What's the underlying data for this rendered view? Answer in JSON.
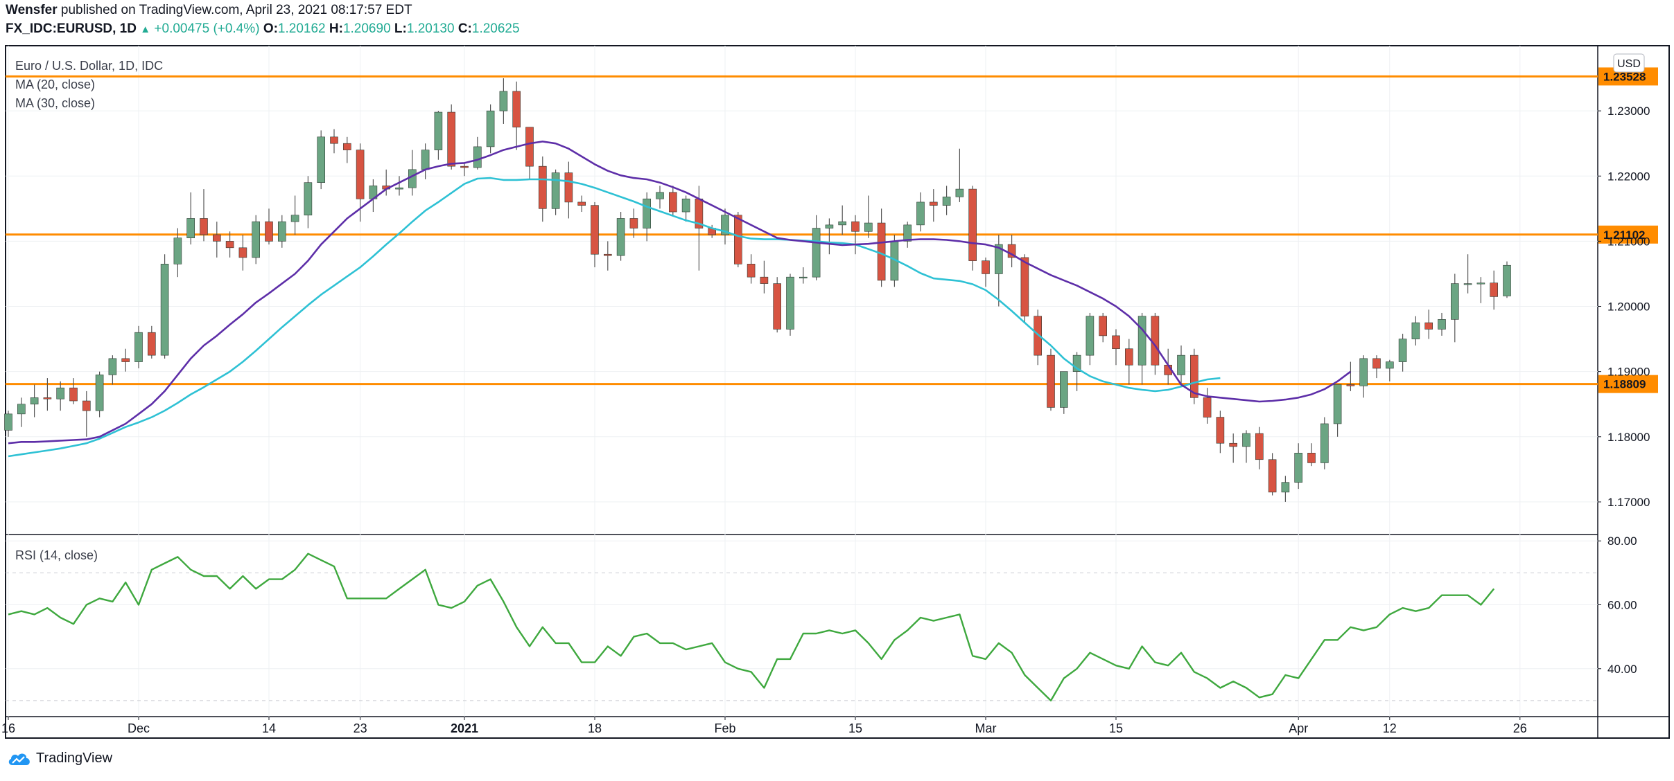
{
  "header": {
    "author": "Wensfer",
    "published_text": "published on TradingView.com, April 23, 2021 08:17:57 EDT",
    "symbol": "FX_IDC:EURUSD, 1D",
    "change": "+0.00475 (+0.4%)",
    "o_label": "O:",
    "o_value": "1.20162",
    "h_label": "H:",
    "h_value": "1.20690",
    "l_label": "L:",
    "l_value": "1.20130",
    "c_label": "C:",
    "c_value": "1.20625"
  },
  "legend": {
    "title": "Euro / U.S. Dollar, 1D, IDC",
    "ma20": "MA (20, close)",
    "ma30": "MA (30, close)",
    "rsi": "RSI (14, close)",
    "currency_button": "USD"
  },
  "footer": {
    "brand": "TradingView"
  },
  "colors": {
    "up": "#6ba583",
    "down": "#d75442",
    "wick": "#555555",
    "ma20": "#5d2ea8",
    "ma30": "#2ec1d4",
    "hline": "#ff8c00",
    "rsi": "#3ea83e",
    "grid": "#eef0f3",
    "axis": "#131722"
  },
  "chart_data": {
    "type": "candlestick",
    "title": "Euro / U.S. Dollar, 1D, IDC",
    "price_axis": {
      "min": 1.165,
      "max": 1.24,
      "ticks": [
        1.17,
        1.18,
        1.19,
        1.2,
        1.21,
        1.22,
        1.23
      ],
      "tick_labels": [
        "1.17000",
        "1.18000",
        "1.19000",
        "1.20000",
        "1.21000",
        "1.22000",
        "1.23000"
      ]
    },
    "x_ticks": [
      {
        "i": 0,
        "label": "16"
      },
      {
        "i": 10,
        "label": "Dec"
      },
      {
        "i": 20,
        "label": "14"
      },
      {
        "i": 27,
        "label": "23"
      },
      {
        "i": 35,
        "label": "2021"
      },
      {
        "i": 45,
        "label": "18"
      },
      {
        "i": 55,
        "label": "Feb"
      },
      {
        "i": 65,
        "label": "15"
      },
      {
        "i": 75,
        "label": "Mar"
      },
      {
        "i": 85,
        "label": "15"
      },
      {
        "i": 99,
        "label": "Apr"
      },
      {
        "i": 106,
        "label": "12"
      },
      {
        "i": 116,
        "label": "26"
      }
    ],
    "horizontal_lines": [
      1.23528,
      1.21102,
      1.18809
    ],
    "horizontal_line_labels": [
      "1.23528",
      "1.21102",
      "1.18809"
    ],
    "candles": [
      [
        1.181,
        1.184,
        1.18,
        1.1835
      ],
      [
        1.1835,
        1.186,
        1.1815,
        1.185
      ],
      [
        1.185,
        1.188,
        1.183,
        1.186
      ],
      [
        1.186,
        1.189,
        1.184,
        1.1858
      ],
      [
        1.1858,
        1.1885,
        1.184,
        1.1875
      ],
      [
        1.1875,
        1.189,
        1.185,
        1.1855
      ],
      [
        1.1855,
        1.187,
        1.18,
        1.184
      ],
      [
        1.184,
        1.19,
        1.183,
        1.1895
      ],
      [
        1.1895,
        1.1925,
        1.188,
        1.192
      ],
      [
        1.192,
        1.1935,
        1.19,
        1.1915
      ],
      [
        1.1915,
        1.197,
        1.1905,
        1.196
      ],
      [
        1.196,
        1.197,
        1.192,
        1.1925
      ],
      [
        1.1925,
        1.208,
        1.192,
        1.2065
      ],
      [
        1.2065,
        1.212,
        1.2045,
        1.2105
      ],
      [
        1.2105,
        1.2175,
        1.2095,
        1.2135
      ],
      [
        1.2135,
        1.218,
        1.21,
        1.211
      ],
      [
        1.211,
        1.213,
        1.2075,
        1.21
      ],
      [
        1.21,
        1.2115,
        1.2075,
        1.209
      ],
      [
        1.209,
        1.211,
        1.2055,
        1.2075
      ],
      [
        1.2075,
        1.214,
        1.2065,
        1.213
      ],
      [
        1.213,
        1.215,
        1.2095,
        1.21
      ],
      [
        1.21,
        1.214,
        1.209,
        1.213
      ],
      [
        1.213,
        1.217,
        1.211,
        1.214
      ],
      [
        1.214,
        1.22,
        1.212,
        1.219
      ],
      [
        1.219,
        1.227,
        1.218,
        1.226
      ],
      [
        1.226,
        1.2272,
        1.2235,
        1.225
      ],
      [
        1.225,
        1.226,
        1.222,
        1.224
      ],
      [
        1.224,
        1.225,
        1.213,
        1.2165
      ],
      [
        1.2165,
        1.2195,
        1.2145,
        1.2185
      ],
      [
        1.2185,
        1.221,
        1.217,
        1.218
      ],
      [
        1.218,
        1.22,
        1.217,
        1.2182
      ],
      [
        1.2182,
        1.224,
        1.217,
        1.221
      ],
      [
        1.221,
        1.225,
        1.2195,
        1.224
      ],
      [
        1.224,
        1.23,
        1.2225,
        1.2298
      ],
      [
        1.2298,
        1.231,
        1.221,
        1.2215
      ],
      [
        1.2215,
        1.222,
        1.22,
        1.2213
      ],
      [
        1.2213,
        1.226,
        1.221,
        1.2245
      ],
      [
        1.2245,
        1.231,
        1.2235,
        1.23
      ],
      [
        1.23,
        1.235,
        1.228,
        1.233
      ],
      [
        1.233,
        1.2345,
        1.224,
        1.2275
      ],
      [
        1.2275,
        1.2275,
        1.2195,
        1.2215
      ],
      [
        1.2215,
        1.223,
        1.213,
        1.215
      ],
      [
        1.215,
        1.221,
        1.214,
        1.2205
      ],
      [
        1.2205,
        1.2222,
        1.2135,
        1.216
      ],
      [
        1.216,
        1.217,
        1.2145,
        1.2155
      ],
      [
        1.2155,
        1.216,
        1.206,
        1.208
      ],
      [
        1.208,
        1.21,
        1.2055,
        1.2078
      ],
      [
        1.2078,
        1.2145,
        1.207,
        1.2135
      ],
      [
        1.2135,
        1.215,
        1.2105,
        1.212
      ],
      [
        1.212,
        1.2175,
        1.21,
        1.2165
      ],
      [
        1.2165,
        1.2185,
        1.215,
        1.2175
      ],
      [
        1.2175,
        1.2185,
        1.214,
        1.2145
      ],
      [
        1.2145,
        1.217,
        1.213,
        1.2165
      ],
      [
        1.2165,
        1.2185,
        1.2055,
        1.212
      ],
      [
        1.212,
        1.2125,
        1.2105,
        1.211
      ],
      [
        1.211,
        1.215,
        1.2095,
        1.214
      ],
      [
        1.214,
        1.2145,
        1.206,
        1.2065
      ],
      [
        1.2065,
        1.208,
        1.2035,
        1.2045
      ],
      [
        1.2045,
        1.207,
        1.202,
        1.2035
      ],
      [
        1.2035,
        1.2045,
        1.196,
        1.1965
      ],
      [
        1.1965,
        1.205,
        1.1955,
        1.2045
      ],
      [
        1.2045,
        1.206,
        1.2035,
        1.2045
      ],
      [
        1.2045,
        1.214,
        1.204,
        1.212
      ],
      [
        1.212,
        1.2135,
        1.208,
        1.2125
      ],
      [
        1.2125,
        1.2155,
        1.211,
        1.213
      ],
      [
        1.213,
        1.214,
        1.208,
        1.2115
      ],
      [
        1.2115,
        1.217,
        1.2105,
        1.2128
      ],
      [
        1.2128,
        1.215,
        1.203,
        1.204
      ],
      [
        1.204,
        1.211,
        1.203,
        1.21
      ],
      [
        1.21,
        1.213,
        1.209,
        1.2125
      ],
      [
        1.2125,
        1.2175,
        1.2115,
        1.216
      ],
      [
        1.216,
        1.218,
        1.213,
        1.2155
      ],
      [
        1.2155,
        1.2185,
        1.214,
        1.2168
      ],
      [
        1.2168,
        1.2242,
        1.216,
        1.218
      ],
      [
        1.218,
        1.2185,
        1.2055,
        1.207
      ],
      [
        1.207,
        1.2075,
        1.203,
        1.205
      ],
      [
        1.205,
        1.211,
        1.2,
        1.2095
      ],
      [
        1.2095,
        1.211,
        1.206,
        1.2075
      ],
      [
        1.2075,
        1.208,
        1.1975,
        1.1985
      ],
      [
        1.1985,
        1.1995,
        1.191,
        1.1925
      ],
      [
        1.1925,
        1.1935,
        1.184,
        1.1845
      ],
      [
        1.1845,
        1.19,
        1.1835,
        1.19
      ],
      [
        1.19,
        1.193,
        1.187,
        1.1925
      ],
      [
        1.1925,
        1.199,
        1.191,
        1.1985
      ],
      [
        1.1985,
        1.199,
        1.1945,
        1.1955
      ],
      [
        1.1955,
        1.1965,
        1.191,
        1.1935
      ],
      [
        1.1935,
        1.195,
        1.188,
        1.191
      ],
      [
        1.191,
        1.199,
        1.188,
        1.1985
      ],
      [
        1.1985,
        1.199,
        1.1895,
        1.191
      ],
      [
        1.191,
        1.1935,
        1.188,
        1.1895
      ],
      [
        1.1895,
        1.194,
        1.188,
        1.1925
      ],
      [
        1.1925,
        1.1935,
        1.185,
        1.186
      ],
      [
        1.186,
        1.1875,
        1.182,
        1.183
      ],
      [
        1.183,
        1.184,
        1.1775,
        1.179
      ],
      [
        1.179,
        1.1805,
        1.176,
        1.1785
      ],
      [
        1.1785,
        1.181,
        1.176,
        1.1805
      ],
      [
        1.1805,
        1.1815,
        1.175,
        1.1765
      ],
      [
        1.1765,
        1.1775,
        1.171,
        1.1715
      ],
      [
        1.1715,
        1.174,
        1.17,
        1.173
      ],
      [
        1.173,
        1.179,
        1.172,
        1.1775
      ],
      [
        1.1775,
        1.179,
        1.1755,
        1.176
      ],
      [
        1.176,
        1.183,
        1.175,
        1.182
      ],
      [
        1.182,
        1.188,
        1.18,
        1.188
      ],
      [
        1.188,
        1.1915,
        1.187,
        1.1878
      ],
      [
        1.1878,
        1.1925,
        1.186,
        1.192
      ],
      [
        1.192,
        1.1925,
        1.189,
        1.1905
      ],
      [
        1.1905,
        1.1918,
        1.1885,
        1.1915
      ],
      [
        1.1915,
        1.1958,
        1.19,
        1.195
      ],
      [
        1.195,
        1.1985,
        1.194,
        1.1975
      ],
      [
        1.1975,
        1.1995,
        1.195,
        1.1965
      ],
      [
        1.1965,
        1.199,
        1.1955,
        1.198
      ],
      [
        1.198,
        1.205,
        1.1945,
        1.2035
      ],
      [
        1.2035,
        1.208,
        1.202,
        1.2035
      ],
      [
        1.2035,
        1.2045,
        1.2005,
        1.2036
      ],
      [
        1.2036,
        1.2055,
        1.1995,
        1.2015
      ],
      [
        1.2016,
        1.2069,
        1.2013,
        1.2063
      ]
    ],
    "ma20": [
      1.179,
      1.1792,
      1.1792,
      1.1793,
      1.1794,
      1.1795,
      1.1796,
      1.18,
      1.181,
      1.182,
      1.1835,
      1.185,
      1.187,
      1.1895,
      1.192,
      1.194,
      1.1955,
      1.1972,
      1.1988,
      1.2006,
      1.202,
      1.2035,
      1.205,
      1.207,
      1.2095,
      1.2115,
      1.2135,
      1.215,
      1.2165,
      1.218,
      1.219,
      1.22,
      1.221,
      1.2215,
      1.2219,
      1.222,
      1.2225,
      1.2232,
      1.224,
      1.2245,
      1.225,
      1.2253,
      1.225,
      1.2242,
      1.223,
      1.2218,
      1.2208,
      1.2201,
      1.2197,
      1.2195,
      1.219,
      1.2183,
      1.2175,
      1.2165,
      1.2155,
      1.2145,
      1.2135,
      1.2125,
      1.2115,
      1.2105,
      1.2102,
      1.21,
      1.2098,
      1.2096,
      1.2094,
      1.2095,
      1.2096,
      1.2098,
      1.21,
      1.2102,
      1.2103,
      1.2103,
      1.2102,
      1.21,
      1.2097,
      1.2095,
      1.209,
      1.208,
      1.2068,
      1.2058,
      1.2048,
      1.204,
      1.2032,
      1.2022,
      1.2012,
      1.2,
      1.1985,
      1.1965,
      1.194,
      1.191,
      1.188,
      1.1867,
      1.1862,
      1.186,
      1.1858,
      1.1856,
      1.1854,
      1.1855,
      1.1857,
      1.186,
      1.1865,
      1.1873,
      1.1885,
      1.19
    ],
    "ma30": [
      1.177,
      1.1773,
      1.1776,
      1.1779,
      1.1782,
      1.1786,
      1.179,
      1.1797,
      1.1806,
      1.1815,
      1.1822,
      1.183,
      1.184,
      1.1852,
      1.1865,
      1.1876,
      1.1888,
      1.19,
      1.1915,
      1.1932,
      1.195,
      1.1968,
      1.1985,
      1.2002,
      1.2018,
      1.2032,
      1.2046,
      1.206,
      1.2077,
      1.2095,
      1.2112,
      1.213,
      1.2147,
      1.216,
      1.2174,
      1.2188,
      1.2196,
      1.2197,
      1.2194,
      1.2194,
      1.2195,
      1.2195,
      1.2194,
      1.2192,
      1.2188,
      1.2182,
      1.2175,
      1.2168,
      1.2161,
      1.2153,
      1.2146,
      1.2139,
      1.2132,
      1.2127,
      1.212,
      1.2115,
      1.2108,
      1.2104,
      1.2103,
      1.2103,
      1.2102,
      1.2101,
      1.21,
      1.2098,
      1.2097,
      1.2095,
      1.2088,
      1.2081,
      1.2072,
      1.2062,
      1.2051,
      1.2043,
      1.2041,
      1.2039,
      1.2034,
      1.2025,
      1.201,
      1.1993,
      1.1975,
      1.1957,
      1.194,
      1.192,
      1.1905,
      1.1893,
      1.1885,
      1.188,
      1.1875,
      1.1872,
      1.187,
      1.1872,
      1.1877,
      1.1883,
      1.1888,
      1.189
    ],
    "rsi_axis": {
      "min": 25,
      "max": 82,
      "ticks": [
        40,
        60,
        80
      ],
      "tick_labels": [
        "40.00",
        "60.00",
        "80.00"
      ],
      "bands": [
        70,
        30
      ]
    },
    "rsi": [
      57,
      58,
      57,
      59,
      56,
      54,
      60,
      62,
      61,
      67,
      60,
      71,
      73,
      75,
      71,
      69,
      69,
      65,
      69,
      65,
      68,
      68,
      71,
      76,
      74,
      72,
      62,
      62,
      62,
      62,
      65,
      68,
      71,
      60,
      59,
      61,
      66,
      68,
      61,
      53,
      47,
      53,
      48,
      48,
      42,
      42,
      47,
      44,
      50,
      51,
      48,
      48,
      46,
      47,
      48,
      42,
      40,
      39,
      34,
      43,
      43,
      51,
      51,
      52,
      51,
      52,
      48,
      43,
      49,
      52,
      56,
      55,
      56,
      57,
      44,
      43,
      48,
      45,
      38,
      34,
      30,
      37,
      40,
      45,
      43,
      41,
      40,
      47,
      42,
      41,
      45,
      39,
      37,
      34,
      36,
      34,
      31,
      32,
      38,
      37,
      43,
      49,
      49,
      53,
      52,
      53,
      57,
      59,
      58,
      59,
      63,
      63,
      63,
      60,
      65
    ]
  }
}
